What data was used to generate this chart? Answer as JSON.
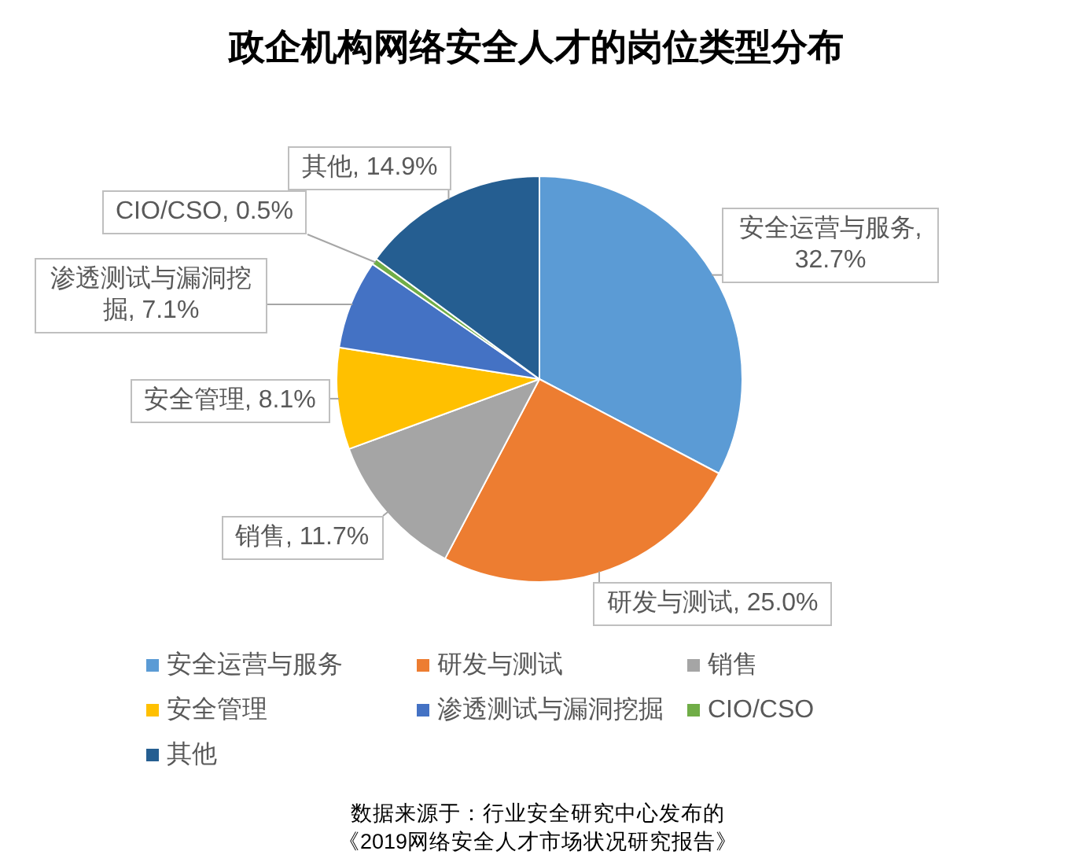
{
  "chart_data": {
    "type": "pie",
    "title": "政企机构网络安全人才的岗位类型分布",
    "categories": [
      "安全运营与服务",
      "研发与测试",
      "销售",
      "安全管理",
      "渗透测试与漏洞挖掘",
      "CIO/CSO",
      "其他"
    ],
    "values": [
      32.7,
      25.0,
      11.7,
      8.1,
      7.1,
      0.5,
      14.9
    ],
    "colors": [
      "#5b9bd5",
      "#ed7d31",
      "#a5a5a5",
      "#ffc000",
      "#4472c4",
      "#70ad47",
      "#255e91"
    ],
    "value_labels": [
      "安全运营与服务, 32.7%",
      "研发与测试, 25.0%",
      "销售, 11.7%",
      "安全管理, 8.1%",
      "渗透测试与漏洞挖掘, 7.1%",
      "CIO/CSO, 0.5%",
      "其他, 14.9%"
    ],
    "legend": "bottom",
    "annotations": [
      "数据来源于：行业安全研究中心发布的",
      "《2019网络安全人才市场状况研究报告》"
    ]
  }
}
